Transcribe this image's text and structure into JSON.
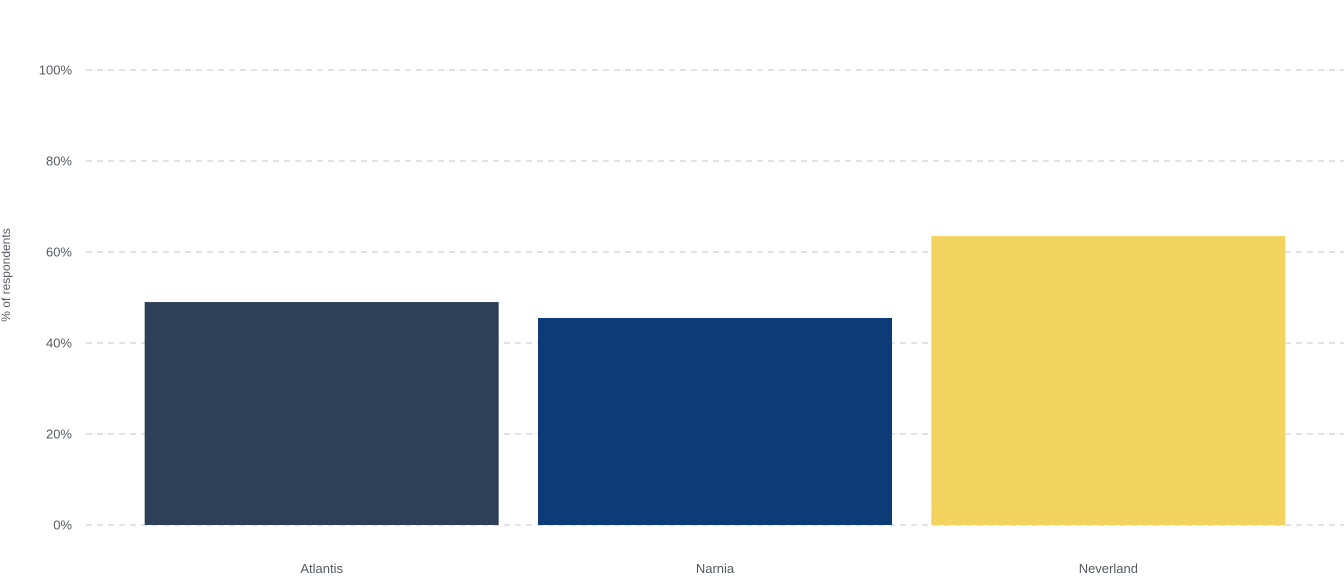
{
  "chart_data": {
    "type": "bar",
    "categories": [
      "Atlantis",
      "Narnia",
      "Neverland"
    ],
    "values": [
      49,
      45.5,
      63.5
    ],
    "colors": [
      "#2e4057",
      "#0b3c78",
      "#f2d360"
    ],
    "ylabel": "% of respondents",
    "xlabel": "",
    "ylim": [
      0,
      100
    ],
    "yticks": [
      "0%",
      "20%",
      "40%",
      "60%",
      "80%",
      "100%"
    ],
    "ytick_values": [
      0,
      20,
      40,
      60,
      80,
      100
    ],
    "grid": true,
    "legend": "none"
  }
}
